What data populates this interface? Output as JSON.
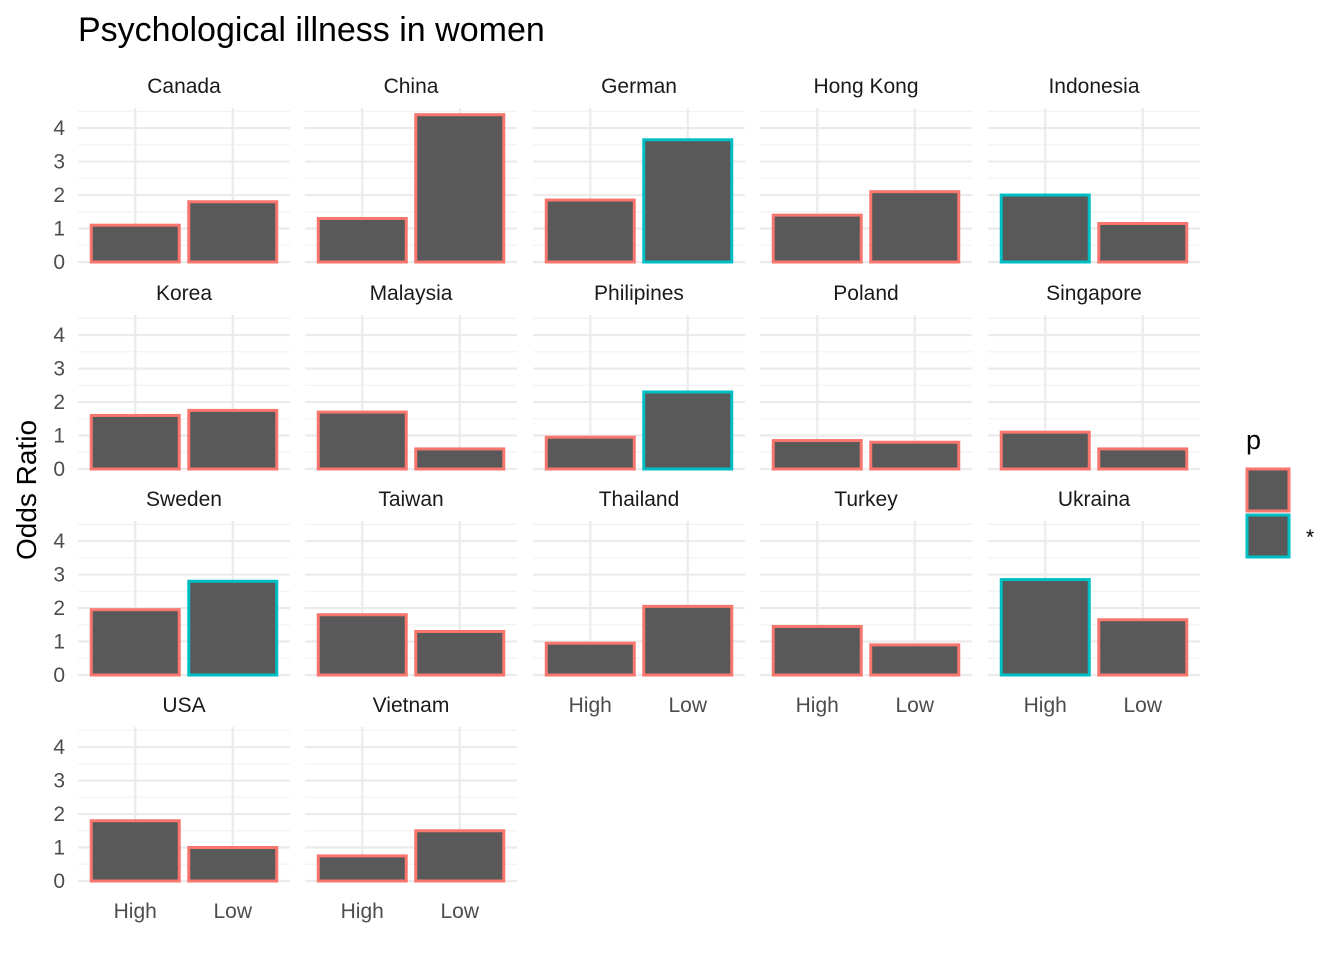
{
  "chart_data": {
    "type": "bar",
    "title": "Psychological illness in women",
    "xlabel": "",
    "ylabel": "Odds Ratio",
    "ylim": [
      0,
      4.6
    ],
    "yticks": [
      "0",
      "1",
      "2",
      "3",
      "4"
    ],
    "categories": [
      "High",
      "Low"
    ],
    "grid": true,
    "legend": {
      "title": "p",
      "position": "right",
      "entries": [
        {
          "label": "",
          "color": "#f8766d"
        },
        {
          "label": "*",
          "color": "#00bfc4"
        }
      ]
    },
    "fill_color": "#595959",
    "colors": {
      "ns": "#f8766d",
      "sig": "#00bfc4"
    },
    "facets": [
      {
        "name": "Canada",
        "values": [
          1.1,
          1.8
        ],
        "sig": [
          false,
          false
        ]
      },
      {
        "name": "China",
        "values": [
          1.3,
          4.4
        ],
        "sig": [
          false,
          false
        ]
      },
      {
        "name": "German",
        "values": [
          1.85,
          3.65
        ],
        "sig": [
          false,
          true
        ]
      },
      {
        "name": "Hong Kong",
        "values": [
          1.4,
          2.1
        ],
        "sig": [
          false,
          false
        ]
      },
      {
        "name": "Indonesia",
        "values": [
          2.0,
          1.15
        ],
        "sig": [
          true,
          false
        ]
      },
      {
        "name": "Korea",
        "values": [
          1.6,
          1.75
        ],
        "sig": [
          false,
          false
        ]
      },
      {
        "name": "Malaysia",
        "values": [
          1.7,
          0.6
        ],
        "sig": [
          false,
          false
        ]
      },
      {
        "name": "Philipines",
        "values": [
          0.95,
          2.3
        ],
        "sig": [
          false,
          true
        ]
      },
      {
        "name": "Poland",
        "values": [
          0.85,
          0.8
        ],
        "sig": [
          false,
          false
        ]
      },
      {
        "name": "Singapore",
        "values": [
          1.1,
          0.6
        ],
        "sig": [
          false,
          false
        ]
      },
      {
        "name": "Sweden",
        "values": [
          1.95,
          2.8
        ],
        "sig": [
          false,
          true
        ]
      },
      {
        "name": "Taiwan",
        "values": [
          1.8,
          1.3
        ],
        "sig": [
          false,
          false
        ]
      },
      {
        "name": "Thailand",
        "values": [
          0.95,
          2.05
        ],
        "sig": [
          false,
          false
        ]
      },
      {
        "name": "Turkey",
        "values": [
          1.45,
          0.9
        ],
        "sig": [
          false,
          false
        ]
      },
      {
        "name": "Ukraina",
        "values": [
          2.85,
          1.65
        ],
        "sig": [
          true,
          false
        ]
      },
      {
        "name": "USA",
        "values": [
          1.8,
          1.0
        ],
        "sig": [
          false,
          false
        ]
      },
      {
        "name": "Vietnam",
        "values": [
          0.75,
          1.5
        ],
        "sig": [
          false,
          false
        ]
      }
    ]
  }
}
